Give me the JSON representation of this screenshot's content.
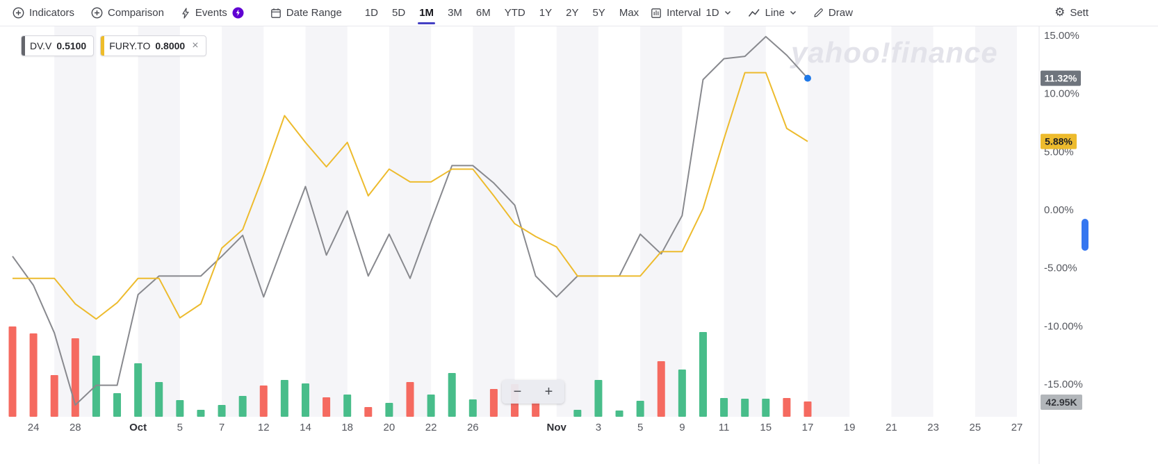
{
  "toolbar": {
    "indicators": "Indicators",
    "comparison": "Comparison",
    "events": "Events",
    "date_range": "Date Range",
    "ranges": [
      "1D",
      "5D",
      "1M",
      "3M",
      "6M",
      "YTD",
      "1Y",
      "2Y",
      "5Y",
      "Max"
    ],
    "active_range": "1M",
    "interval_label": "Interval",
    "interval_value": "1D",
    "chart_type_label": "Line",
    "draw": "Draw",
    "settings": "Sett"
  },
  "legend": [
    {
      "symbol": "DV.V",
      "value": "0.5100",
      "color": "#64666c"
    },
    {
      "symbol": "FURY.TO",
      "value": "0.8000",
      "color": "#eebc29",
      "close": "×"
    }
  ],
  "watermark": "yahoo!finance",
  "zoom_controls": {
    "minus": "−",
    "plus": "+"
  },
  "badges": {
    "dvv_last": "11.32%",
    "fury_last": "5.88%",
    "volume_last": "42.95K"
  },
  "colors": {
    "up": "#48bd8a",
    "down": "#f56a60",
    "series_dvv": "#88898e",
    "series_fury": "#edbb2d",
    "dot": "#1e78e8",
    "band": "#f5f5f8",
    "badge_gray": "#6f757d",
    "badge_volume": "#b2b6ba",
    "axis_text": "#55575e",
    "accent_underline": "#4440c4",
    "events_badge": "#6001d2",
    "scroll_nub": "#3576f0"
  },
  "chart_data": {
    "type": "line",
    "unit": "percent-change",
    "x": [
      "Sep 23",
      "Sep 24",
      "Sep 27",
      "Sep 28",
      "Sep 29",
      "Sep 30",
      "Oct 1",
      "Oct 4",
      "Oct 5",
      "Oct 6",
      "Oct 7",
      "Oct 8",
      "Oct 12",
      "Oct 13",
      "Oct 14",
      "Oct 15",
      "Oct 18",
      "Oct 19",
      "Oct 20",
      "Oct 21",
      "Oct 22",
      "Oct 25",
      "Oct 26",
      "Oct 27",
      "Oct 28",
      "Oct 29",
      "Nov 1",
      "Nov 2",
      "Nov 3",
      "Nov 4",
      "Nov 5",
      "Nov 8",
      "Nov 9",
      "Nov 10",
      "Nov 11",
      "Nov 12",
      "Nov 15",
      "Nov 16",
      "Nov 17"
    ],
    "series": [
      {
        "name": "DV.V",
        "color": "#88898e",
        "last_label": "11.32%",
        "values": [
          -4.0,
          -6.5,
          -10.6,
          -16.8,
          -15.1,
          -15.1,
          -7.3,
          -5.7,
          -5.7,
          -5.7,
          -4.0,
          -2.2,
          -7.5,
          -2.7,
          2.0,
          -3.9,
          -0.1,
          -5.7,
          -2.1,
          -5.9,
          -1.0,
          3.8,
          3.8,
          2.3,
          0.4,
          -5.7,
          -7.5,
          -5.7,
          -5.7,
          -5.7,
          -2.1,
          -3.8,
          -0.5,
          11.2,
          13.0,
          13.2,
          14.9,
          13.3,
          11.32
        ]
      },
      {
        "name": "FURY.TO",
        "color": "#edbb2d",
        "last_label": "5.88%",
        "values": [
          -5.9,
          -5.9,
          -5.9,
          -8.1,
          -9.4,
          -8.0,
          -5.9,
          -5.9,
          -9.3,
          -8.1,
          -3.3,
          -1.7,
          3.0,
          8.1,
          5.8,
          3.7,
          5.8,
          1.2,
          3.5,
          2.4,
          2.4,
          3.5,
          3.5,
          1.2,
          -1.2,
          -2.3,
          -3.2,
          -5.7,
          -5.7,
          -5.7,
          -5.7,
          -3.6,
          -3.6,
          0.1,
          6.1,
          11.8,
          11.8,
          7.0,
          5.88
        ]
      }
    ],
    "volume": {
      "last_label": "42.95K",
      "colors": [
        "r",
        "r",
        "r",
        "r",
        "g",
        "g",
        "g",
        "g",
        "g",
        "g",
        "g",
        "g",
        "r",
        "g",
        "g",
        "r",
        "g",
        "r",
        "g",
        "r",
        "g",
        "g",
        "g",
        "r",
        "r",
        "r",
        "g",
        "g",
        "g",
        "g",
        "g",
        "r",
        "g",
        "g",
        "g",
        "g",
        "g",
        "r",
        "r"
      ],
      "rel_heights": [
        130,
        120,
        60,
        113,
        88,
        34,
        77,
        50,
        24,
        10,
        17,
        30,
        45,
        53,
        48,
        28,
        32,
        14,
        20,
        50,
        32,
        63,
        25,
        40,
        47,
        22,
        0,
        10,
        53,
        9,
        23,
        80,
        68,
        122,
        27,
        26,
        26,
        27,
        22
      ]
    },
    "y_ticks": [
      "15.00%",
      "10.00%",
      "5.00%",
      "0.00%",
      "-5.00%",
      "-10.00%",
      "-15.00%"
    ],
    "y_tick_values": [
      15,
      10,
      5,
      0,
      -5,
      -10,
      -15
    ],
    "ylim": [
      -17.6,
      16.1
    ],
    "x_tick_indices": [
      1,
      3,
      6,
      8,
      10,
      12,
      14,
      16,
      18,
      20,
      22,
      26,
      28,
      30,
      32,
      34,
      36,
      38
    ],
    "x_tick_labels": [
      "24",
      "28",
      "Oct",
      "5",
      "7",
      "12",
      "14",
      "18",
      "20",
      "22",
      "26",
      "Nov",
      "3",
      "5",
      "9",
      "11",
      "15",
      "17"
    ],
    "future_x_labels": [
      "19",
      "21",
      "23",
      "25",
      "27"
    ],
    "legend_position": "top-left",
    "grid": "vertical-bands"
  }
}
